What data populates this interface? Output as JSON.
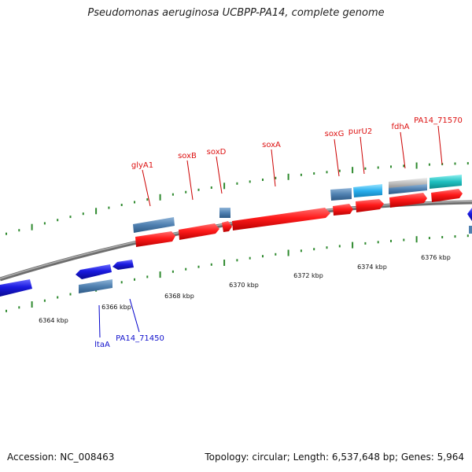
{
  "title": "Pseudomonas aeruginosa UCBPP-PA14, complete genome",
  "footer": {
    "accession": "Accession: NC_008463",
    "topology": "Topology: circular; Length: 6,537,648 bp; Genes: 5,964"
  },
  "colors": {
    "backbone": "#888888",
    "tick": "#2f8a2f",
    "forward_label": "#dd1111",
    "reverse_label": "#1111cc",
    "forward_cds": "#ff1a1a",
    "reverse_cds": "#1a1ae0",
    "gene_feature": "#4f80b0",
    "rna_feature": "#2ab0ee",
    "pseudo_feature": "#bdbdbd",
    "misc_feature": "#1fc0c0"
  },
  "tick_labels": [
    {
      "kbp": 6364,
      "text": "6364 kbp"
    },
    {
      "kbp": 6366,
      "text": "6366 kbp"
    },
    {
      "kbp": 6368,
      "text": "6368 kbp"
    },
    {
      "kbp": 6370,
      "text": "6370 kbp"
    },
    {
      "kbp": 6372,
      "text": "6372 kbp"
    },
    {
      "kbp": 6374,
      "text": "6374 kbp"
    },
    {
      "kbp": 6376,
      "text": "6376 kbp"
    }
  ],
  "gene_labels": [
    {
      "text": "glyA1",
      "strand": "forward"
    },
    {
      "text": "soxB",
      "strand": "forward"
    },
    {
      "text": "soxD",
      "strand": "forward"
    },
    {
      "text": "soxA",
      "strand": "forward"
    },
    {
      "text": "soxG",
      "strand": "forward"
    },
    {
      "text": "purU2",
      "strand": "forward"
    },
    {
      "text": "fdhA",
      "strand": "forward"
    },
    {
      "text": "PA14_71570",
      "strand": "forward"
    },
    {
      "text": "ltaA",
      "strand": "reverse"
    },
    {
      "text": "PA14_71450",
      "strand": "reverse"
    }
  ]
}
